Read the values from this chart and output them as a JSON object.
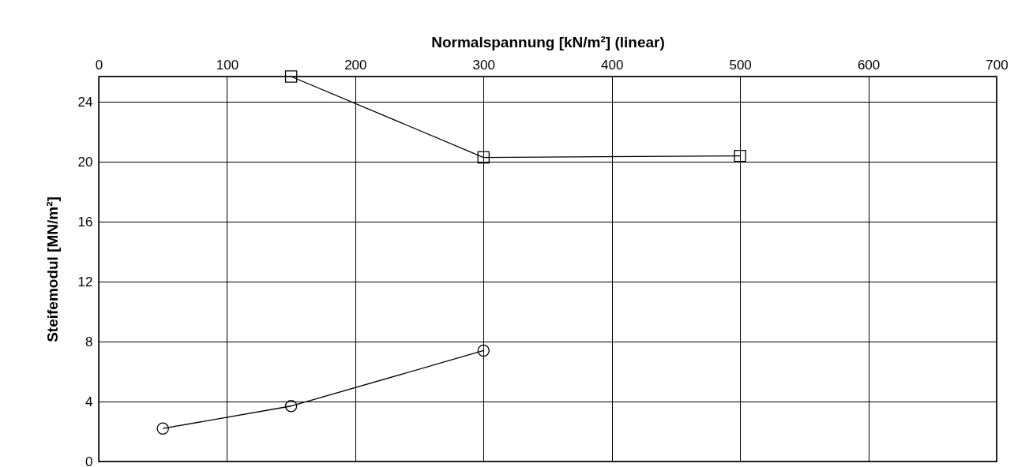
{
  "chart_data": {
    "type": "line",
    "xlabel": "Normalspannung [kN/m²]  (linear)",
    "ylabel": "Steifemodul [MN/m²]",
    "xlim": [
      0,
      700
    ],
    "xticks": [
      0,
      100,
      200,
      300,
      400,
      500,
      600,
      700
    ],
    "ylim": [
      0,
      25.7
    ],
    "yticks": [
      0,
      4,
      8,
      12,
      16,
      20,
      24
    ],
    "grid": true,
    "line_style": "solid",
    "series": [
      {
        "color": "#000000",
        "marker": "square",
        "x": [
          150,
          300,
          500
        ],
        "values": [
          25.7,
          20.3,
          20.4
        ]
      },
      {
        "color": "#000000",
        "marker": "circle",
        "x": [
          50,
          150,
          300
        ],
        "values": [
          2.2,
          3.7,
          7.4
        ]
      }
    ]
  }
}
